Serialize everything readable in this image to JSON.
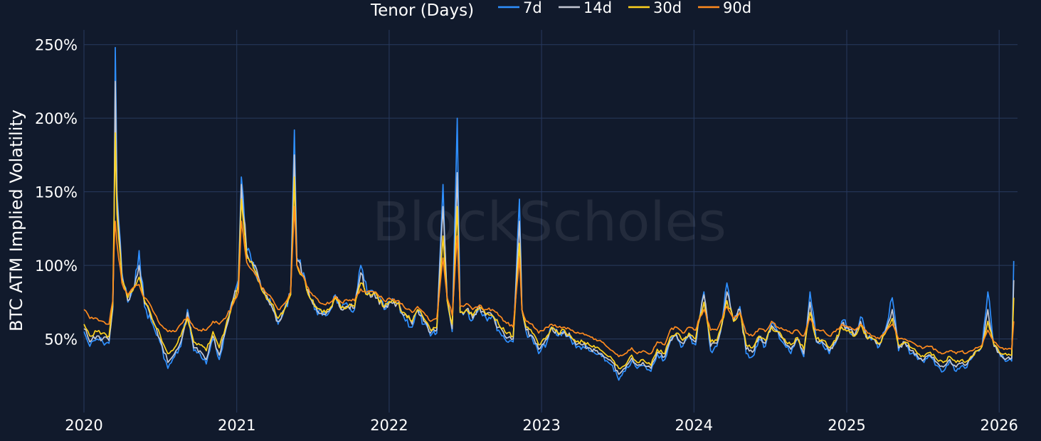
{
  "chart_data": {
    "type": "line",
    "ylabel": "BTC ATM Implied Volatility",
    "xlabel": "",
    "title": "",
    "legend": {
      "title": "Tenor (Days)",
      "placement": "top-center",
      "orientation": "horizontal"
    },
    "watermark": "BlockScholes",
    "x_ticks": [
      "2020",
      "2021",
      "2022",
      "2023",
      "2024",
      "2025",
      "2026"
    ],
    "xlim": [
      "2020-01-01",
      "2026-02-14"
    ],
    "y_ticks": [
      50,
      100,
      150,
      200,
      250
    ],
    "y_tick_suffix": "%",
    "ylim": [
      0,
      260
    ],
    "grid": true,
    "colors": {
      "background": "#111a2c",
      "grid": "#283a5e",
      "text": "#ffffff"
    },
    "x": [
      "2020-01-01",
      "2020-01-15",
      "2020-02-01",
      "2020-02-15",
      "2020-03-01",
      "2020-03-10",
      "2020-03-13",
      "2020-03-16",
      "2020-03-20",
      "2020-04-01",
      "2020-04-15",
      "2020-05-01",
      "2020-05-12",
      "2020-05-25",
      "2020-06-10",
      "2020-07-01",
      "2020-07-20",
      "2020-08-05",
      "2020-08-20",
      "2020-09-05",
      "2020-09-20",
      "2020-10-05",
      "2020-10-20",
      "2020-11-05",
      "2020-11-20",
      "2020-12-05",
      "2020-12-20",
      "2021-01-05",
      "2021-01-12",
      "2021-01-25",
      "2021-02-10",
      "2021-02-25",
      "2021-03-10",
      "2021-03-25",
      "2021-04-10",
      "2021-04-25",
      "2021-05-10",
      "2021-05-19",
      "2021-05-25",
      "2021-06-10",
      "2021-06-25",
      "2021-07-10",
      "2021-07-25",
      "2021-08-10",
      "2021-08-25",
      "2021-09-08",
      "2021-09-25",
      "2021-10-10",
      "2021-10-25",
      "2021-11-10",
      "2021-11-25",
      "2021-12-05",
      "2021-12-20",
      "2022-01-05",
      "2022-01-20",
      "2022-02-05",
      "2022-02-25",
      "2022-03-10",
      "2022-03-25",
      "2022-04-10",
      "2022-04-25",
      "2022-05-10",
      "2022-05-20",
      "2022-06-01",
      "2022-06-13",
      "2022-06-20",
      "2022-07-05",
      "2022-07-20",
      "2022-08-05",
      "2022-08-20",
      "2022-09-05",
      "2022-09-20",
      "2022-10-05",
      "2022-10-25",
      "2022-11-09",
      "2022-11-15",
      "2022-11-25",
      "2022-12-10",
      "2022-12-25",
      "2023-01-14",
      "2023-01-25",
      "2023-02-10",
      "2023-02-25",
      "2023-03-12",
      "2023-03-25",
      "2023-04-10",
      "2023-04-25",
      "2023-05-10",
      "2023-05-25",
      "2023-06-10",
      "2023-06-20",
      "2023-07-05",
      "2023-07-20",
      "2023-08-05",
      "2023-08-18",
      "2023-09-01",
      "2023-09-20",
      "2023-10-05",
      "2023-10-23",
      "2023-11-05",
      "2023-11-20",
      "2023-12-05",
      "2023-12-20",
      "2024-01-05",
      "2024-01-11",
      "2024-01-25",
      "2024-02-10",
      "2024-02-25",
      "2024-03-05",
      "2024-03-20",
      "2024-04-05",
      "2024-04-20",
      "2024-05-05",
      "2024-05-20",
      "2024-06-05",
      "2024-06-20",
      "2024-07-05",
      "2024-07-20",
      "2024-08-05",
      "2024-08-20",
      "2024-09-05",
      "2024-09-20",
      "2024-10-05",
      "2024-10-20",
      "2024-11-06",
      "2024-11-20",
      "2024-12-05",
      "2024-12-20",
      "2025-01-05",
      "2025-01-20",
      "2025-02-03",
      "2025-02-20",
      "2025-03-05",
      "2025-03-20",
      "2025-04-07",
      "2025-04-20",
      "2025-05-05",
      "2025-05-20",
      "2025-06-05",
      "2025-06-20",
      "2025-07-05",
      "2025-07-20",
      "2025-08-05",
      "2025-08-20",
      "2025-09-05",
      "2025-09-20",
      "2025-10-05",
      "2025-10-11",
      "2025-10-25",
      "2025-11-10",
      "2025-11-21",
      "2025-12-05",
      "2025-12-20",
      "2026-01-05",
      "2026-01-20",
      "2026-01-31",
      "2026-02-05"
    ],
    "series": [
      {
        "name": "7d",
        "color": "#2e8fff",
        "values": [
          55,
          45,
          50,
          48,
          47,
          70,
          120,
          248,
          150,
          95,
          75,
          85,
          110,
          72,
          62,
          48,
          30,
          38,
          45,
          70,
          42,
          40,
          33,
          50,
          36,
          55,
          75,
          90,
          160,
          110,
          102,
          90,
          80,
          72,
          60,
          70,
          80,
          192,
          105,
          95,
          78,
          70,
          66,
          68,
          80,
          70,
          72,
          70,
          100,
          80,
          82,
          78,
          70,
          75,
          74,
          65,
          58,
          70,
          60,
          52,
          54,
          155,
          76,
          55,
          200,
          68,
          70,
          63,
          72,
          65,
          66,
          56,
          50,
          48,
          145,
          70,
          55,
          50,
          40,
          48,
          58,
          52,
          55,
          50,
          44,
          45,
          42,
          40,
          38,
          34,
          32,
          22,
          28,
          35,
          30,
          32,
          28,
          40,
          36,
          48,
          52,
          45,
          52,
          46,
          60,
          82,
          42,
          45,
          55,
          88,
          62,
          72,
          40,
          38,
          50,
          45,
          60,
          55,
          46,
          40,
          50,
          38,
          82,
          48,
          45,
          40,
          47,
          62,
          58,
          52,
          65,
          50,
          50,
          45,
          60,
          78,
          42,
          48,
          40,
          36,
          34,
          38,
          32,
          28,
          35,
          28,
          32,
          30,
          36,
          42,
          45,
          82,
          45,
          38,
          35,
          35,
          103
        ]
      },
      {
        "name": "14d",
        "color": "#c4c8d4",
        "values": [
          57,
          48,
          52,
          50,
          49,
          72,
          125,
          225,
          145,
          92,
          76,
          86,
          100,
          74,
          64,
          50,
          34,
          40,
          48,
          68,
          44,
          42,
          36,
          52,
          39,
          56,
          74,
          88,
          155,
          108,
          100,
          89,
          80,
          73,
          62,
          70,
          80,
          175,
          103,
          93,
          78,
          71,
          67,
          69,
          79,
          70,
          72,
          71,
          95,
          80,
          82,
          78,
          71,
          75,
          74,
          66,
          60,
          70,
          62,
          54,
          56,
          140,
          76,
          57,
          163,
          68,
          70,
          64,
          72,
          66,
          66,
          58,
          52,
          50,
          130,
          70,
          56,
          52,
          43,
          50,
          58,
          53,
          55,
          51,
          46,
          46,
          44,
          42,
          40,
          36,
          34,
          26,
          30,
          37,
          32,
          34,
          30,
          41,
          38,
          49,
          53,
          47,
          53,
          48,
          60,
          80,
          45,
          47,
          56,
          82,
          62,
          70,
          43,
          41,
          51,
          47,
          59,
          55,
          48,
          43,
          50,
          40,
          75,
          49,
          47,
          42,
          48,
          60,
          57,
          52,
          62,
          50,
          50,
          46,
          58,
          70,
          44,
          48,
          42,
          38,
          36,
          39,
          34,
          31,
          36,
          31,
          34,
          32,
          37,
          42,
          45,
          70,
          45,
          39,
          37,
          37,
          90
        ]
      },
      {
        "name": "30d",
        "color": "#ffd21e",
        "values": [
          60,
          52,
          55,
          54,
          52,
          74,
          130,
          190,
          135,
          90,
          78,
          86,
          92,
          76,
          66,
          53,
          40,
          44,
          52,
          64,
          48,
          46,
          42,
          55,
          44,
          58,
          72,
          86,
          145,
          105,
          98,
          88,
          80,
          74,
          64,
          70,
          80,
          160,
          100,
          92,
          78,
          72,
          68,
          70,
          78,
          71,
          72,
          72,
          88,
          80,
          81,
          78,
          72,
          75,
          74,
          68,
          62,
          70,
          64,
          56,
          58,
          120,
          76,
          60,
          140,
          68,
          70,
          66,
          71,
          67,
          66,
          60,
          55,
          52,
          115,
          70,
          58,
          54,
          46,
          52,
          58,
          54,
          56,
          52,
          48,
          48,
          46,
          44,
          42,
          38,
          36,
          30,
          32,
          39,
          34,
          36,
          32,
          43,
          40,
          51,
          54,
          49,
          54,
          50,
          60,
          75,
          48,
          49,
          57,
          76,
          62,
          68,
          46,
          44,
          52,
          49,
          58,
          55,
          50,
          46,
          51,
          43,
          68,
          50,
          49,
          44,
          49,
          58,
          56,
          52,
          60,
          50,
          50,
          47,
          56,
          64,
          46,
          48,
          44,
          40,
          38,
          41,
          36,
          34,
          38,
          34,
          36,
          34,
          38,
          42,
          45,
          62,
          46,
          40,
          39,
          39,
          78
        ]
      },
      {
        "name": "90d",
        "color": "#ff8a1e",
        "values": [
          70,
          64,
          64,
          62,
          60,
          76,
          110,
          130,
          115,
          88,
          80,
          85,
          87,
          78,
          72,
          60,
          55,
          55,
          60,
          65,
          58,
          56,
          56,
          62,
          60,
          64,
          72,
          82,
          130,
          102,
          96,
          88,
          82,
          78,
          70,
          74,
          82,
          140,
          100,
          92,
          82,
          78,
          74,
          74,
          79,
          75,
          76,
          76,
          84,
          82,
          82,
          80,
          76,
          77,
          76,
          72,
          68,
          72,
          68,
          62,
          64,
          105,
          78,
          66,
          120,
          72,
          74,
          70,
          73,
          70,
          70,
          66,
          62,
          58,
          105,
          70,
          62,
          60,
          54,
          58,
          60,
          58,
          58,
          56,
          54,
          54,
          52,
          50,
          48,
          44,
          42,
          38,
          40,
          44,
          40,
          42,
          40,
          48,
          46,
          56,
          58,
          54,
          58,
          56,
          62,
          70,
          56,
          56,
          62,
          72,
          64,
          68,
          54,
          52,
          57,
          55,
          62,
          58,
          56,
          54,
          56,
          52,
          64,
          56,
          56,
          52,
          55,
          60,
          58,
          56,
          60,
          54,
          52,
          50,
          56,
          60,
          50,
          50,
          48,
          45,
          44,
          45,
          42,
          40,
          42,
          40,
          42,
          40,
          42,
          44,
          46,
          56,
          48,
          44,
          43,
          43,
          62
        ]
      }
    ]
  }
}
